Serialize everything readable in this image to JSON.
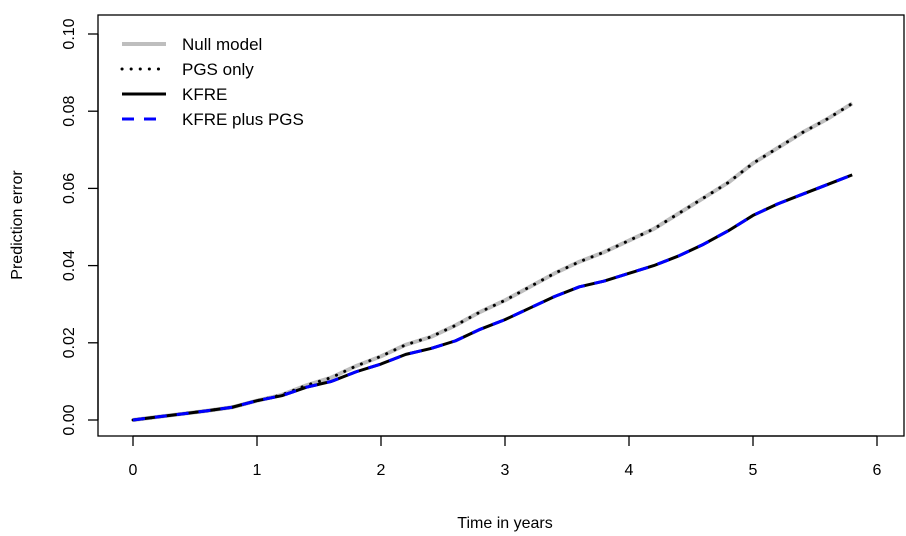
{
  "chart_data": {
    "type": "line",
    "xlabel": "Time in years",
    "ylabel": "Prediction error",
    "xlim": [
      0,
      6
    ],
    "ylim": [
      0,
      0.1
    ],
    "x_ticks": [
      "0",
      "1",
      "2",
      "3",
      "4",
      "5",
      "6"
    ],
    "y_ticks": [
      "0.00",
      "0.02",
      "0.04",
      "0.06",
      "0.08",
      "0.10"
    ],
    "grid": false,
    "legend_position": "top-left",
    "series": [
      {
        "name": "Null model",
        "color": "#bebebe",
        "style": "solid",
        "x": [
          0,
          0.2,
          0.4,
          0.6,
          0.8,
          1.0,
          1.2,
          1.4,
          1.6,
          1.8,
          2.0,
          2.2,
          2.4,
          2.6,
          2.8,
          3.0,
          3.2,
          3.4,
          3.6,
          3.8,
          4.0,
          4.2,
          4.4,
          4.6,
          4.8,
          5.0,
          5.2,
          5.4,
          5.6,
          5.8
        ],
        "values": [
          0,
          0.0008,
          0.0016,
          0.0024,
          0.0033,
          0.005,
          0.0065,
          0.009,
          0.011,
          0.014,
          0.0165,
          0.0195,
          0.0215,
          0.0245,
          0.028,
          0.031,
          0.0345,
          0.038,
          0.041,
          0.0435,
          0.0465,
          0.0495,
          0.0535,
          0.0575,
          0.0615,
          0.0665,
          0.0705,
          0.0745,
          0.078,
          0.082
        ]
      },
      {
        "name": "PGS only",
        "color": "#000000",
        "style": "dotted",
        "x": [
          0,
          0.2,
          0.4,
          0.6,
          0.8,
          1.0,
          1.2,
          1.4,
          1.6,
          1.8,
          2.0,
          2.2,
          2.4,
          2.6,
          2.8,
          3.0,
          3.2,
          3.4,
          3.6,
          3.8,
          4.0,
          4.2,
          4.4,
          4.6,
          4.8,
          5.0,
          5.2,
          5.4,
          5.6,
          5.8
        ],
        "values": [
          0,
          0.0008,
          0.0016,
          0.0024,
          0.0033,
          0.005,
          0.0065,
          0.009,
          0.011,
          0.014,
          0.0165,
          0.0195,
          0.0215,
          0.0245,
          0.028,
          0.031,
          0.0345,
          0.038,
          0.041,
          0.0435,
          0.0465,
          0.0495,
          0.0535,
          0.0575,
          0.0615,
          0.0665,
          0.0705,
          0.0745,
          0.078,
          0.082
        ]
      },
      {
        "name": "KFRE",
        "color": "#000000",
        "style": "solid",
        "x": [
          0,
          0.2,
          0.4,
          0.6,
          0.8,
          1.0,
          1.2,
          1.4,
          1.6,
          1.8,
          2.0,
          2.2,
          2.4,
          2.6,
          2.8,
          3.0,
          3.2,
          3.4,
          3.6,
          3.8,
          4.0,
          4.2,
          4.4,
          4.6,
          4.8,
          5.0,
          5.2,
          5.4,
          5.6,
          5.8
        ],
        "values": [
          0,
          0.0008,
          0.0016,
          0.0024,
          0.0033,
          0.005,
          0.0063,
          0.0085,
          0.01,
          0.0125,
          0.0145,
          0.017,
          0.0185,
          0.0205,
          0.0235,
          0.026,
          0.029,
          0.032,
          0.0345,
          0.036,
          0.038,
          0.04,
          0.0425,
          0.0455,
          0.049,
          0.053,
          0.056,
          0.0585,
          0.061,
          0.0635
        ]
      },
      {
        "name": "KFRE plus PGS",
        "color": "#0000ff",
        "style": "dashed",
        "x": [
          0,
          0.2,
          0.4,
          0.6,
          0.8,
          1.0,
          1.2,
          1.4,
          1.6,
          1.8,
          2.0,
          2.2,
          2.4,
          2.6,
          2.8,
          3.0,
          3.2,
          3.4,
          3.6,
          3.8,
          4.0,
          4.2,
          4.4,
          4.6,
          4.8,
          5.0,
          5.2,
          5.4,
          5.6,
          5.8
        ],
        "values": [
          0,
          0.0008,
          0.0016,
          0.0024,
          0.0033,
          0.005,
          0.0063,
          0.0085,
          0.01,
          0.0125,
          0.0145,
          0.017,
          0.0185,
          0.0205,
          0.0235,
          0.026,
          0.029,
          0.032,
          0.0345,
          0.036,
          0.038,
          0.04,
          0.0425,
          0.0455,
          0.049,
          0.053,
          0.056,
          0.0585,
          0.061,
          0.0635
        ]
      }
    ]
  }
}
